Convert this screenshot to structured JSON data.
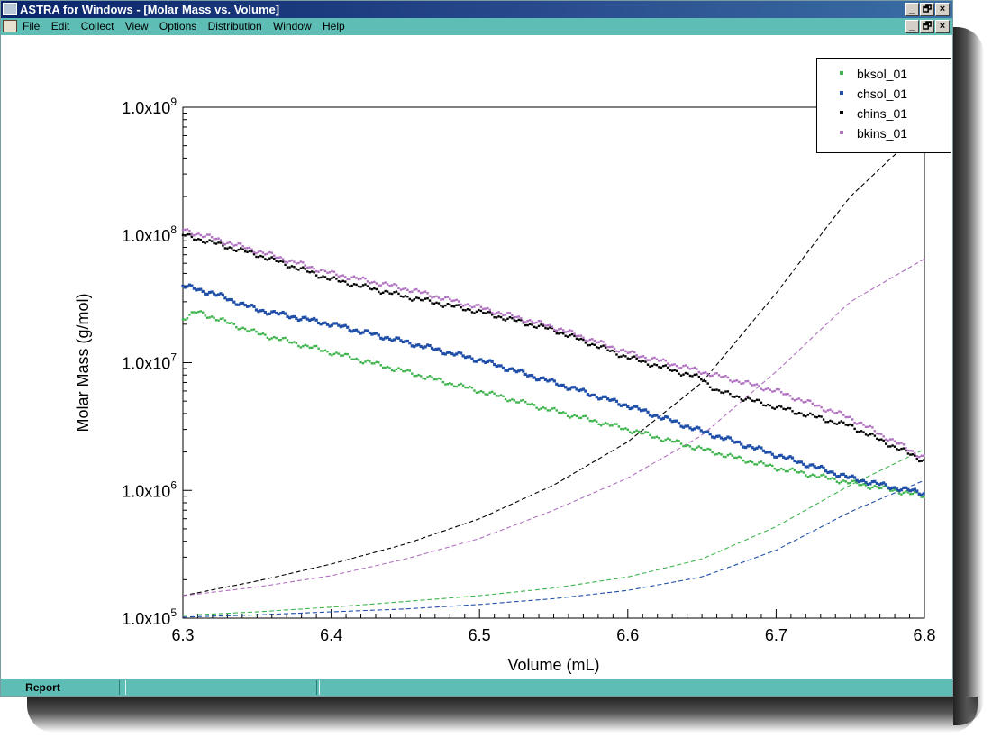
{
  "window": {
    "title": "ASTRA for Windows - [Molar Mass vs. Volume]",
    "menu": [
      "File",
      "Edit",
      "Collect",
      "View",
      "Options",
      "Distribution",
      "Window",
      "Help"
    ],
    "controls": {
      "minimize": "_",
      "restore": "🗗",
      "close": "×"
    }
  },
  "statusbar": {
    "report_label": "Report"
  },
  "legend": [
    {
      "name": "bksol_01",
      "color": "#3cb44b"
    },
    {
      "name": "chsol_01",
      "color": "#1f4fa8"
    },
    {
      "name": "chins_01",
      "color": "#000000"
    },
    {
      "name": "bkins_01",
      "color": "#b070c0"
    }
  ],
  "chart_data": {
    "type": "scatter",
    "xlabel": "Volume (mL)",
    "ylabel": "Molar Mass (g/mol)",
    "xlim": [
      6.3,
      6.8
    ],
    "ylim": [
      100000,
      1000000000
    ],
    "yscale": "log",
    "xticks": [
      "6.3",
      "6.4",
      "6.5",
      "6.6",
      "6.7",
      "6.8"
    ],
    "yticks": [
      {
        "mantissa": "1.0x10",
        "exp": "5"
      },
      {
        "mantissa": "1.0x10",
        "exp": "6"
      },
      {
        "mantissa": "1.0x10",
        "exp": "7"
      },
      {
        "mantissa": "1.0x10",
        "exp": "8"
      },
      {
        "mantissa": "1.0x10",
        "exp": "9"
      }
    ],
    "grid": false,
    "legend_position": "top-right",
    "series": [
      {
        "name": "bksol_01",
        "color": "#3cb44b",
        "style": "points",
        "x": [
          6.3,
          6.31,
          6.35,
          6.4,
          6.45,
          6.5,
          6.55,
          6.6,
          6.65,
          6.7,
          6.75,
          6.78,
          6.8
        ],
        "y": [
          22000000,
          25000000,
          17000000,
          12000000,
          8500000,
          6000000,
          4200000,
          3000000,
          2100000,
          1500000,
          1150000,
          1000000,
          900000
        ]
      },
      {
        "name": "chsol_01",
        "color": "#1f4fa8",
        "style": "points",
        "x": [
          6.3,
          6.32,
          6.35,
          6.4,
          6.45,
          6.5,
          6.55,
          6.6,
          6.65,
          6.7,
          6.75,
          6.78,
          6.8
        ],
        "y": [
          40000000,
          35000000,
          26000000,
          20000000,
          14500000,
          10500000,
          7000000,
          4600000,
          2900000,
          1900000,
          1250000,
          1050000,
          950000
        ]
      },
      {
        "name": "chins_01",
        "color": "#000000",
        "style": "points",
        "x": [
          6.3,
          6.35,
          6.4,
          6.45,
          6.5,
          6.55,
          6.6,
          6.65,
          6.66,
          6.7,
          6.75,
          6.8
        ],
        "y": [
          100000000,
          70000000,
          45000000,
          33000000,
          25000000,
          18000000,
          11000000,
          7500000,
          6000000,
          4500000,
          3200000,
          1700000
        ]
      },
      {
        "name": "bkins_01",
        "color": "#b070c0",
        "style": "points",
        "x": [
          6.3,
          6.35,
          6.4,
          6.45,
          6.5,
          6.55,
          6.6,
          6.65,
          6.7,
          6.75,
          6.8
        ],
        "y": [
          110000000,
          75000000,
          50000000,
          38000000,
          27000000,
          19000000,
          12000000,
          8500000,
          6000000,
          3700000,
          1800000
        ]
      },
      {
        "name": "chins_01",
        "color": "#000000",
        "style": "dashed",
        "x": [
          6.3,
          6.35,
          6.4,
          6.45,
          6.5,
          6.55,
          6.6,
          6.65,
          6.7,
          6.75,
          6.8
        ],
        "y": [
          150000,
          195000,
          265000,
          380000,
          600000,
          1100000,
          2400000,
          7000000,
          35000000,
          200000000,
          700000000
        ]
      },
      {
        "name": "bkins_01",
        "color": "#b070c0",
        "style": "dashed",
        "x": [
          6.3,
          6.35,
          6.4,
          6.45,
          6.5,
          6.55,
          6.6,
          6.65,
          6.7,
          6.75,
          6.8
        ],
        "y": [
          150000,
          175000,
          215000,
          290000,
          420000,
          700000,
          1250000,
          2700000,
          8500000,
          30000000,
          65000000
        ]
      },
      {
        "name": "bksol_01",
        "color": "#3cb44b",
        "style": "dashed",
        "x": [
          6.3,
          6.35,
          6.4,
          6.45,
          6.5,
          6.55,
          6.6,
          6.65,
          6.7,
          6.75,
          6.8
        ],
        "y": [
          105000,
          112000,
          122000,
          135000,
          150000,
          172000,
          210000,
          290000,
          520000,
          1100000,
          2100000
        ]
      },
      {
        "name": "chsol_01",
        "color": "#1f4fa8",
        "style": "dashed",
        "x": [
          6.3,
          6.35,
          6.4,
          6.45,
          6.5,
          6.55,
          6.6,
          6.65,
          6.7,
          6.75,
          6.8
        ],
        "y": [
          102000,
          106000,
          112000,
          118000,
          128000,
          142000,
          165000,
          210000,
          340000,
          680000,
          1200000
        ]
      }
    ]
  }
}
